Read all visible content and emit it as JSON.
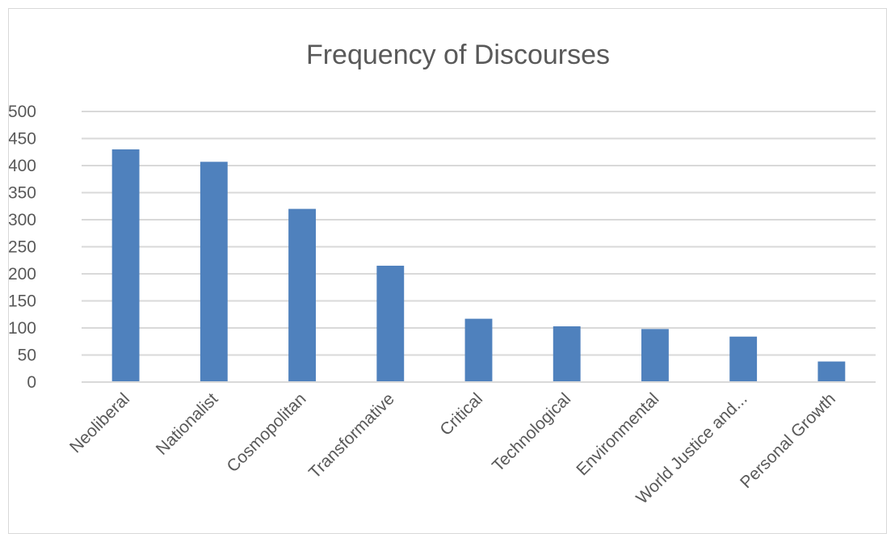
{
  "chart_data": {
    "type": "bar",
    "title": "Frequency of Discourses",
    "xlabel": "",
    "ylabel": "",
    "categories": [
      "Neoliberal",
      "Nationalist",
      "Cosmopolitan",
      "Transformative",
      "Critical",
      "Technological",
      "Environmental",
      "World Justice and...",
      "Personal Growth"
    ],
    "values": [
      430,
      407,
      320,
      215,
      117,
      103,
      98,
      84,
      38
    ],
    "ylim": [
      0,
      500
    ],
    "yticks": [
      "0",
      "50",
      "100",
      "150",
      "200",
      "250",
      "300",
      "350",
      "400",
      "450",
      "500"
    ],
    "grid": true,
    "legend": "none",
    "colors": {
      "bar": "#4f81bd",
      "grid": "#d9d9d9",
      "text": "#595959"
    }
  }
}
